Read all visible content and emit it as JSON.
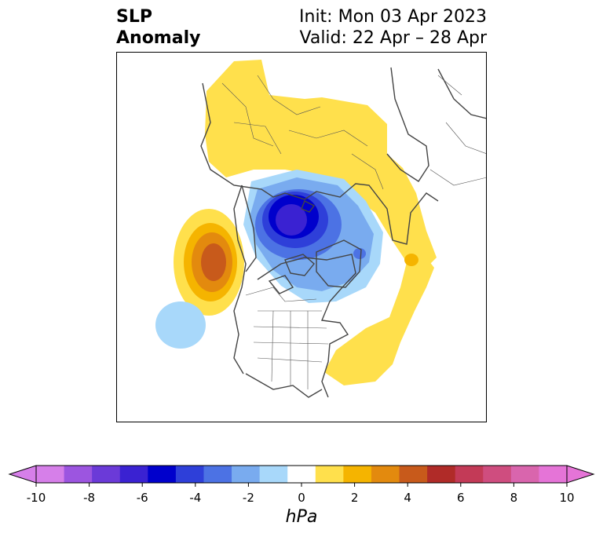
{
  "header": {
    "title_line1": "SLP",
    "title_line2": "Anomaly",
    "init": "Init: Mon 03 Apr 2023",
    "valid": "Valid: 22 Apr – 28 Apr"
  },
  "colorbar": {
    "unit": "hPa",
    "ticks": [
      "-10",
      "-8",
      "-6",
      "-4",
      "-2",
      "0",
      "2",
      "4",
      "6",
      "8",
      "10"
    ],
    "levels": [
      -10,
      -9,
      -8,
      -7,
      -6,
      -5,
      -4,
      -3,
      -2,
      -1,
      1,
      2,
      3,
      4,
      5,
      6,
      7,
      8,
      9,
      10
    ],
    "colors": [
      "#d67fe9",
      "#9c55e0",
      "#6b3ad8",
      "#3a22d2",
      "#0000cc",
      "#2e3fd9",
      "#4c72e4",
      "#79abef",
      "#a8d8fa",
      "#ffffff",
      "#ffe04c",
      "#f5b400",
      "#e38a0e",
      "#c85a1b",
      "#b02b28",
      "#c33a57",
      "#cf4d7f",
      "#d965ad",
      "#e574d7"
    ],
    "under_color": "#d67fe9",
    "over_color": "#e574d7"
  },
  "map": {
    "projection": "north-polar-stereographic",
    "anomalies": [
      {
        "name": "central-arctic-low",
        "peak_hpa": -6
      },
      {
        "name": "gulf-of-alaska-high",
        "peak_hpa": 4
      },
      {
        "name": "eurasia-high",
        "peak_hpa": 1
      },
      {
        "name": "north-pacific-low",
        "peak_hpa": -1
      },
      {
        "name": "western-atlantic-high",
        "peak_hpa": 1
      }
    ]
  }
}
